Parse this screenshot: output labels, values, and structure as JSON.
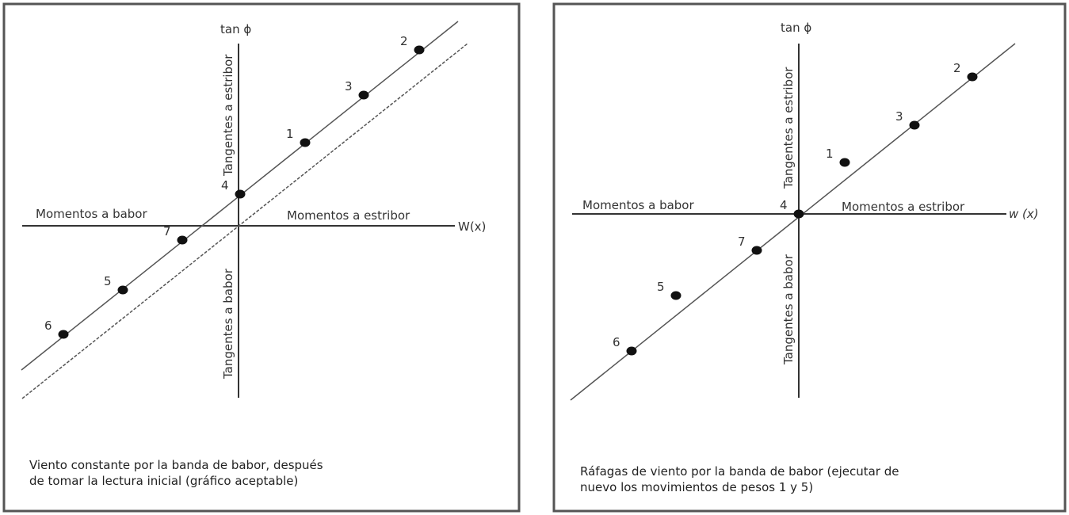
{
  "panels": [
    {
      "y_axis_label": "tan ϕ",
      "x_axis_label": "W(x)",
      "left_label": "Momentos a babor",
      "right_label": "Momentos a estribor",
      "upper_label": "Tangentes a estribor",
      "lower_label": "Tangentes a babor",
      "caption_line1": "Viento constante por la banda de babor, después",
      "caption_line2": "de tomar la lectura inicial (gráfico aceptable)",
      "lines": [
        "solid",
        "dashed"
      ],
      "points": [
        "1",
        "2",
        "3",
        "4",
        "5",
        "6",
        "7"
      ]
    },
    {
      "y_axis_label": "tan ϕ",
      "x_axis_label": "w (x)",
      "left_label": "Momentos a babor",
      "right_label": "Momentos a estribor",
      "upper_label": "Tangentes a estribor",
      "lower_label": "Tangentes a babor",
      "caption_line1": "Ráfagas de viento por la banda de babor (ejecutar de",
      "caption_line2": "nuevo los movimientos de pesos 1 y 5)",
      "lines": [
        "solid"
      ],
      "points": [
        "1",
        "2",
        "3",
        "4",
        "5",
        "6",
        "7"
      ]
    }
  ],
  "colors": {
    "line": "#333333",
    "point": "#111111",
    "border": "#555555"
  }
}
